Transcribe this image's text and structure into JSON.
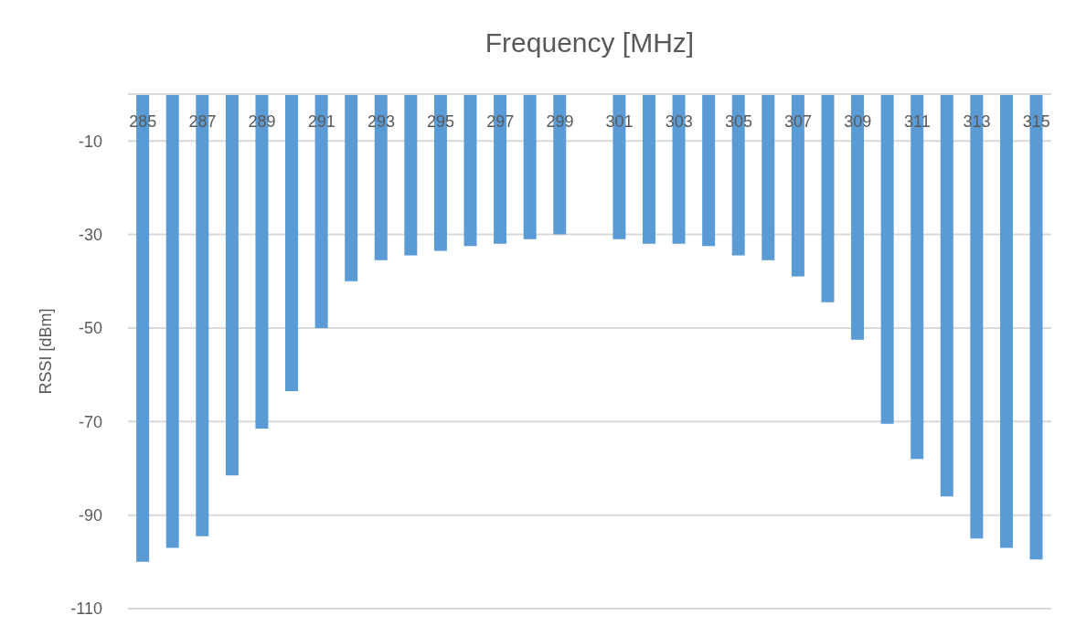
{
  "chart_data": {
    "type": "bar",
    "xlabel": "Frequency [MHz]",
    "ylabel": "RSSI [dBm]",
    "categories": [
      "285",
      null,
      "287",
      null,
      "289",
      null,
      "291",
      null,
      "293",
      null,
      "295",
      null,
      "297",
      null,
      "299",
      null,
      "301",
      null,
      "303",
      null,
      "305",
      null,
      "307",
      null,
      "309",
      null,
      "311",
      null,
      "313",
      null,
      "315"
    ],
    "values": [
      -100,
      -97,
      -94.5,
      -81.5,
      -71.5,
      -63.5,
      -50,
      -40,
      -35.5,
      -34.5,
      -33.5,
      -32.5,
      -32,
      -31,
      -30,
      null,
      -31,
      -32,
      -32,
      -32.5,
      -34.5,
      -35.5,
      -39,
      -44.5,
      -52.5,
      -70.5,
      -78,
      -86,
      -95,
      -97,
      -99.5
    ],
    "color": "#5b9bd5",
    "ylim": [
      -110,
      0
    ],
    "yticks": [
      -110,
      -90,
      -70,
      -50,
      -30,
      -10
    ],
    "grid": "y"
  }
}
